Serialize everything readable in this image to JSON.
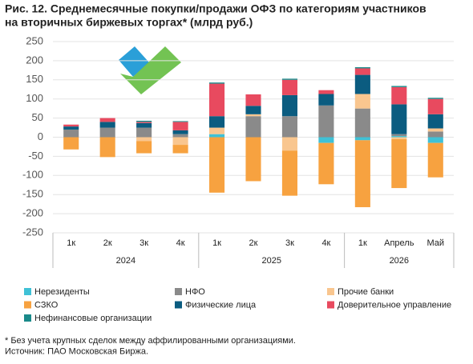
{
  "chart_data": {
    "type": "stacked_bar",
    "title": [
      "Рис. 12. Среднемесячные покупки/продажи ОФЗ по категориям участников",
      "на вторичных биржевых торгах* (млрд руб.)"
    ],
    "category_groups": [
      {
        "label": "2024",
        "categories": [
          "1к",
          "2к",
          "3к",
          "4к"
        ]
      },
      {
        "label": "2025",
        "categories": [
          "1к",
          "2к",
          "3к",
          "4к"
        ]
      },
      {
        "label": "2026",
        "categories": [
          "1к",
          "Апрель",
          "Май"
        ]
      }
    ],
    "series": [
      {
        "name": "Нерезиденты",
        "color": "#3fc1d6",
        "values": [
          0,
          0,
          0,
          0,
          8,
          0,
          0,
          -15,
          -8,
          3,
          -15
        ]
      },
      {
        "name": "НФО",
        "color": "#8a8a8a",
        "values": [
          20,
          25,
          25,
          8,
          0,
          55,
          55,
          83,
          75,
          5,
          15
        ]
      },
      {
        "name": "Прочие банки",
        "color": "#f9c68f",
        "values": [
          0,
          0,
          -10,
          -20,
          17,
          5,
          -35,
          0,
          38,
          -5,
          8
        ]
      },
      {
        "name": "СЗКО",
        "color": "#f7a240",
        "values": [
          -32,
          -52,
          -32,
          -22,
          -145,
          -115,
          -118,
          -108,
          -175,
          -128,
          -90
        ]
      },
      {
        "name": "Физические лица",
        "color": "#0b5c80",
        "values": [
          8,
          15,
          12,
          10,
          30,
          22,
          55,
          30,
          50,
          78,
          37
        ]
      },
      {
        "name": "Доверительное управление",
        "color": "#e84a5f",
        "values": [
          5,
          10,
          3,
          22,
          85,
          30,
          40,
          10,
          17,
          45,
          40
        ]
      },
      {
        "name": "Нефинансовые организации",
        "color": "#1a8a8a",
        "values": [
          0,
          0,
          3,
          2,
          3,
          0,
          3,
          0,
          3,
          3,
          3
        ]
      }
    ],
    "ylim": [
      -250,
      250
    ],
    "yticks": [
      -250,
      -200,
      -150,
      -100,
      -50,
      0,
      50,
      100,
      150,
      200,
      250
    ],
    "grid": true,
    "notes": [
      "* Без учета крупных сделок между аффилированными организациями.",
      "Источник: ПАО Московская Биржа."
    ]
  }
}
